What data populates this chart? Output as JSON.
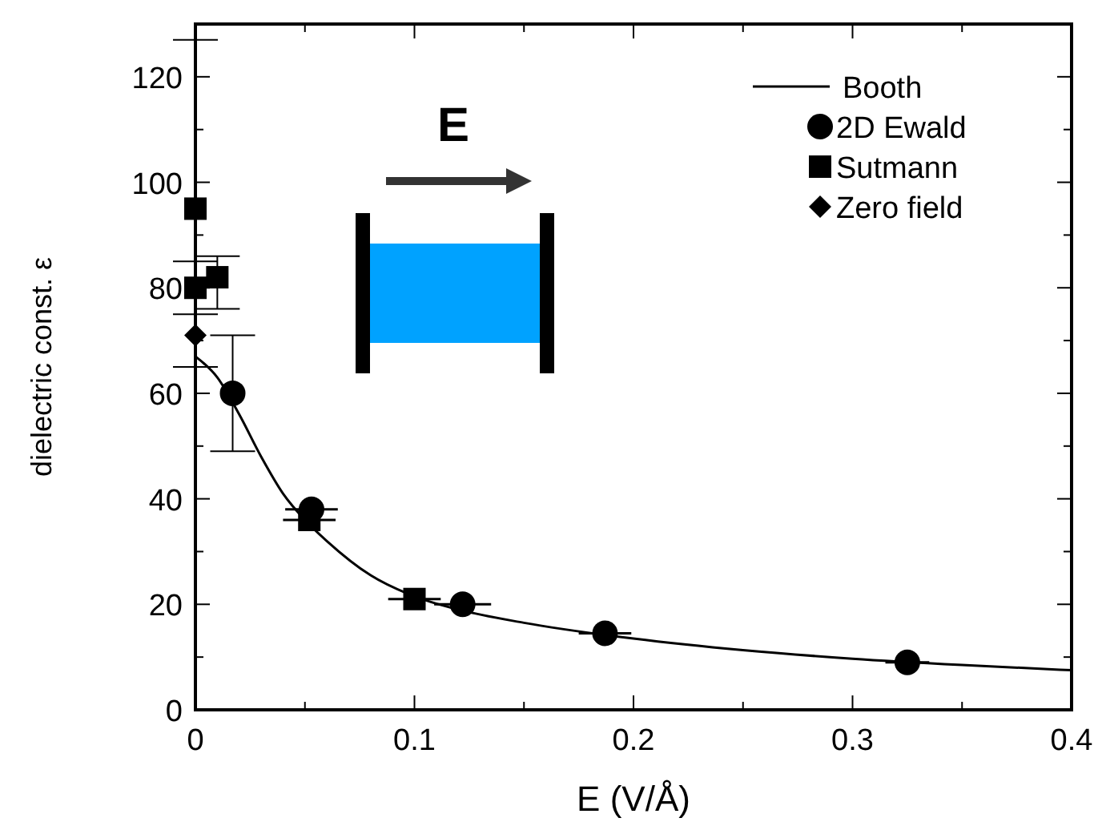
{
  "chart_data": {
    "type": "scatter",
    "xlabel": "E (V/Å)",
    "ylabel": "dielectric const. ε",
    "xlim": [
      0,
      0.4
    ],
    "ylim": [
      0,
      130
    ],
    "xticks": [
      0,
      {
        "value": 0.05,
        "label": null
      },
      0.1,
      {
        "value": 0.15,
        "label": null
      },
      0.2,
      {
        "value": 0.25,
        "label": null
      },
      0.3,
      {
        "value": 0.35,
        "label": null
      },
      0.4
    ],
    "yticks": [
      0,
      {
        "value": 10,
        "label": null
      },
      20,
      {
        "value": 30,
        "label": null
      },
      40,
      {
        "value": 50,
        "label": null
      },
      60,
      {
        "value": 70,
        "label": null
      },
      80,
      {
        "value": 90,
        "label": null
      },
      100,
      {
        "value": 110,
        "label": null
      },
      120
    ],
    "legend": "top right",
    "annotations": [
      "E"
    ],
    "series": [
      {
        "name": "Booth",
        "type": "line",
        "color": "#000000",
        "marker": "none",
        "line_style": "solid",
        "x": [
          0,
          0.01,
          0.02,
          0.03,
          0.04,
          0.05,
          0.06,
          0.08,
          0.1,
          0.12,
          0.15,
          0.2,
          0.25,
          0.3,
          0.35,
          0.4
        ],
        "values": [
          67,
          63,
          56,
          48,
          41,
          36,
          32,
          25.5,
          21.5,
          19,
          16.5,
          13.5,
          11.3,
          9.7,
          8.5,
          7.5
        ]
      },
      {
        "name": "2D Ewald",
        "color": "#000000",
        "marker": "circle",
        "x": [
          0.017,
          0.053,
          0.122,
          0.187,
          0.325
        ],
        "values": [
          60,
          38,
          20,
          14.5,
          9
        ],
        "errors": [
          [
            49,
            71
          ],
          null,
          null,
          null,
          null
        ],
        "xerrors": [
          null,
          0.012,
          0.013,
          0.012,
          0.01
        ]
      },
      {
        "name": "Sutmann",
        "color": "#000000",
        "marker": "square",
        "x": [
          0,
          0.01,
          0,
          0.052,
          0.1
        ],
        "values": [
          95,
          82,
          80,
          36,
          21
        ],
        "errors": [
          [
            65,
            127
          ],
          [
            76,
            86
          ],
          [
            75,
            85
          ],
          null,
          null
        ],
        "xerrors": [
          null,
          null,
          null,
          0.012,
          0.012
        ]
      },
      {
        "name": "Zero field",
        "color": "#000000",
        "marker": "diamond",
        "x": [
          0
        ],
        "values": [
          71
        ]
      }
    ]
  }
}
